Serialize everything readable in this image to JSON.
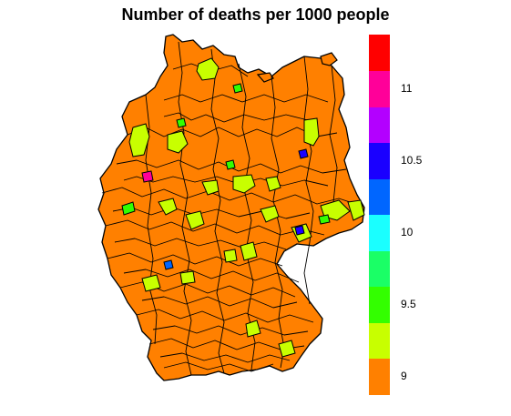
{
  "title": "Number of deaths per 1000 people",
  "legend": {
    "colors": [
      "#FF8000",
      "#C8FF00",
      "#33FF00",
      "#1AFF66",
      "#1AFFFF",
      "#0066FF",
      "#1A00FF",
      "#B300FF",
      "#FF0099",
      "#FF0000"
    ],
    "labels": [
      "9",
      "9.5",
      "10",
      "10.5",
      "11"
    ]
  },
  "map": {
    "region": "Germany districts",
    "base_fill": "#FF8000",
    "border_color": "#000000"
  }
}
